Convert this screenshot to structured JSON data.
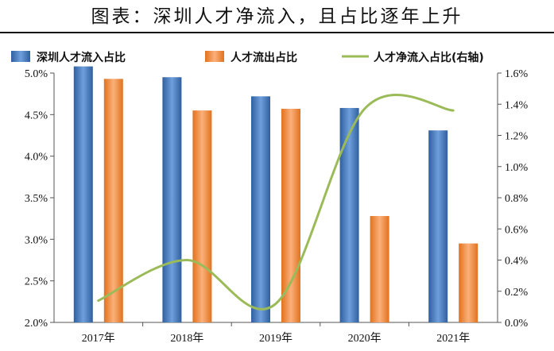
{
  "title": "图表：深圳人才净流入，且占比逐年上升",
  "colors": {
    "inflow": "#4f81bd",
    "outflow": "#f79646",
    "net": "#9bbb59"
  },
  "chart_data": {
    "type": "bar",
    "categories": [
      "2017年",
      "2018年",
      "2019年",
      "2020年",
      "2021年"
    ],
    "series": [
      {
        "name": "深圳人才流入占比",
        "type": "bar",
        "axis": "left",
        "values": [
          5.08,
          4.95,
          4.72,
          4.58,
          4.31
        ]
      },
      {
        "name": "人才流出占比",
        "type": "bar",
        "axis": "left",
        "values": [
          4.93,
          4.55,
          4.57,
          3.28,
          2.95
        ]
      },
      {
        "name": "人才净流入占比(右轴)",
        "type": "line",
        "axis": "right",
        "values": [
          0.14,
          0.4,
          0.12,
          1.37,
          1.36
        ]
      }
    ],
    "y_left": {
      "min": 2.0,
      "max": 5.0,
      "ticks": [
        "2.0%",
        "2.5%",
        "3.0%",
        "3.5%",
        "4.0%",
        "4.5%",
        "5.0%"
      ]
    },
    "y_right": {
      "min": 0.0,
      "max": 1.6,
      "ticks": [
        "0.0%",
        "0.2%",
        "0.4%",
        "0.6%",
        "0.8%",
        "1.0%",
        "1.2%",
        "1.4%",
        "1.6%"
      ]
    },
    "grid": false,
    "legend": "top"
  }
}
